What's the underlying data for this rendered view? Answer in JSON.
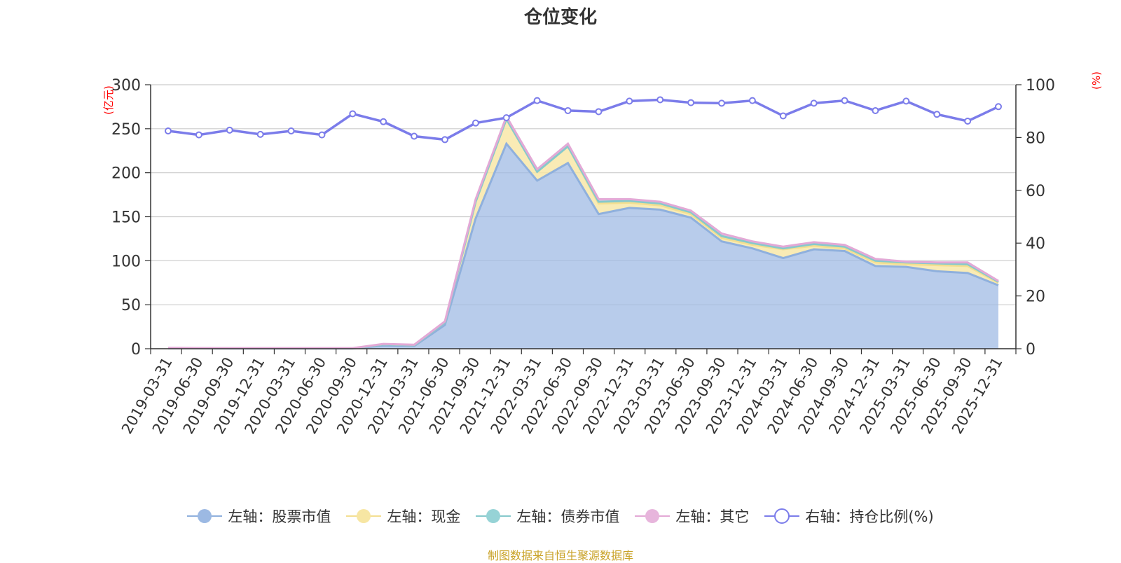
{
  "colors": {
    "stock": "#9cb9e3",
    "cash": "#f7e6a3",
    "bond": "#96d3d6",
    "other": "#e7b5dc",
    "ratio": "#7b7cea",
    "axis_unit": "#ff0000",
    "source": "#c9a227"
  },
  "source_note": "制图数据来自恒生聚源数据库",
  "chart_data": {
    "type": "area",
    "title": "仓位变化",
    "stacked": true,
    "y_left": {
      "unit": "(亿元)",
      "range": [
        0,
        300
      ],
      "ticks": [
        "0",
        "50",
        "100",
        "150",
        "200",
        "250",
        "300"
      ]
    },
    "y_right": {
      "unit": "(%)",
      "range": [
        0,
        100
      ],
      "ticks": [
        "0",
        "20",
        "40",
        "60",
        "80",
        "100"
      ]
    },
    "grid": true,
    "legend_position": "bottom",
    "x": [
      "2019-03-31",
      "2019-06-30",
      "2019-09-30",
      "2019-12-31",
      "2020-03-31",
      "2020-06-30",
      "2020-09-30",
      "2020-12-31",
      "2021-03-31",
      "2021-06-30",
      "2021-09-30",
      "2021-12-31",
      "2022-03-31",
      "2022-06-30",
      "2022-09-30",
      "2022-12-31",
      "2023-03-31",
      "2023-06-30",
      "2023-09-30",
      "2023-12-31",
      "2024-03-31",
      "2024-06-30",
      "2024-09-30",
      "2024-12-31",
      "2025-03-31",
      "2025-06-30",
      "2025-09-30",
      "2025-12-31"
    ],
    "series": [
      {
        "name": "左轴：股票市值",
        "axis": "left",
        "color_key": "stock",
        "values": [
          0.5,
          0.4,
          0.3,
          0.3,
          0.3,
          0.3,
          0.3,
          3.5,
          3,
          27,
          148,
          233,
          191,
          211,
          153,
          160,
          158,
          149,
          122,
          114,
          103,
          113,
          111,
          94,
          93,
          88,
          86,
          72
        ]
      },
      {
        "name": "左轴：现金",
        "axis": "left",
        "color_key": "cash",
        "values": [
          0.3,
          0.2,
          0.2,
          0.2,
          0.2,
          0.2,
          0.2,
          1.5,
          1,
          3,
          19,
          28,
          10,
          19,
          12,
          6,
          5,
          4,
          4,
          4,
          10,
          4,
          3,
          4,
          3,
          7,
          8,
          3
        ]
      },
      {
        "name": "左轴：债券市值",
        "axis": "left",
        "color_key": "bond",
        "values": [
          0,
          0,
          0,
          0,
          0,
          0,
          0,
          0,
          0,
          0,
          0,
          0,
          0,
          0,
          2,
          2,
          2,
          2,
          2,
          2,
          1,
          2,
          2,
          2,
          2,
          2,
          2,
          1
        ]
      },
      {
        "name": "左轴：其它",
        "axis": "left",
        "color_key": "other",
        "values": [
          0.2,
          0.2,
          0.2,
          0.2,
          0.2,
          0.2,
          0.2,
          0.5,
          0.5,
          1,
          3,
          3,
          3,
          3,
          3,
          2,
          2,
          2,
          3,
          2,
          2,
          2,
          2,
          2,
          1,
          1,
          2,
          1
        ]
      },
      {
        "name": "右轴：持仓比例(%)",
        "axis": "right",
        "color_key": "ratio",
        "type": "line",
        "values": [
          82.5,
          81,
          82.8,
          81.2,
          82.5,
          81,
          89,
          86,
          80.5,
          79.2,
          85.5,
          87.5,
          94,
          90.2,
          89.8,
          93.8,
          94.3,
          93.2,
          93,
          94,
          88.2,
          93,
          94,
          90.2,
          93.8,
          88.8,
          86.2,
          91.7
        ]
      }
    ]
  }
}
